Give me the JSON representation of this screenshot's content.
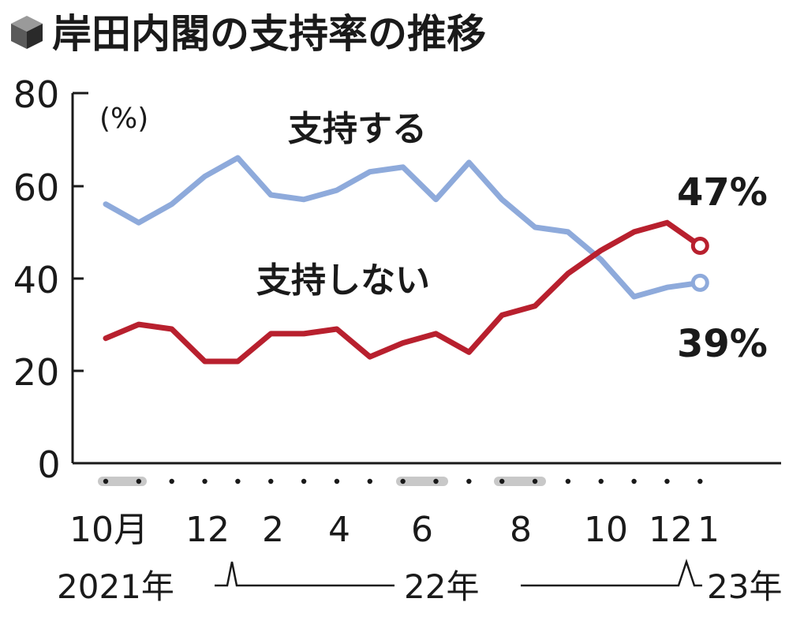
{
  "chart_data": {
    "type": "line",
    "title": "岸田内閣の支持率の推移",
    "ylabel": "(%)",
    "ylim": [
      0,
      80
    ],
    "yticks": [
      "0",
      "20",
      "40",
      "60",
      "80"
    ],
    "x_tick_labels": [
      "10月",
      "12",
      "2",
      "4",
      "6",
      "8",
      "10",
      "12",
      "1"
    ],
    "year_labels": [
      "2021年",
      "22年",
      "23年"
    ],
    "series": [
      {
        "name": "支持する",
        "color": "#8eaadb",
        "values": [
          56,
          52,
          56,
          62,
          66,
          58,
          57,
          59,
          63,
          64,
          57,
          65,
          57,
          51,
          50,
          44,
          36,
          38,
          39
        ],
        "end_label": "39%"
      },
      {
        "name": "支持しない",
        "color": "#b8202e",
        "values": [
          27,
          30,
          29,
          22,
          22,
          28,
          28,
          29,
          23,
          26,
          28,
          24,
          32,
          34,
          41,
          46,
          50,
          52,
          47
        ],
        "end_label": "47%"
      }
    ],
    "grid": false
  },
  "colors": {
    "axis": "#1a1a1a",
    "month_dot": "#1a1a1a",
    "highlight_band": "#c8c8c8"
  }
}
